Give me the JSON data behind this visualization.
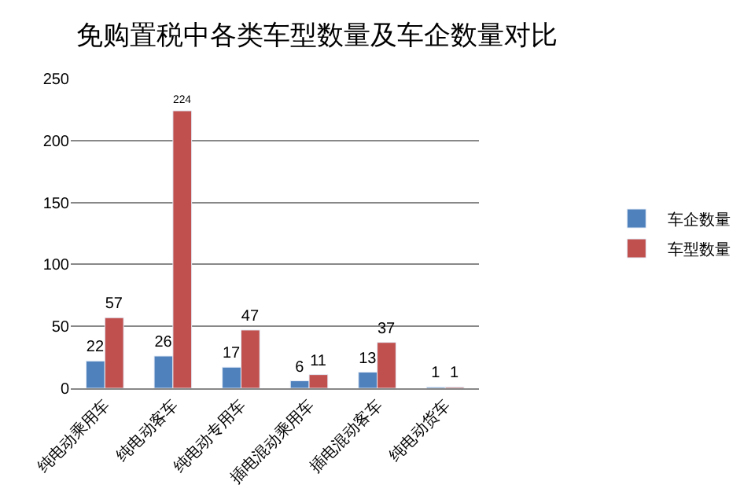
{
  "chart_data": {
    "type": "bar",
    "title": "免购置税中各类车型数量及车企数量对比",
    "categories": [
      "纯电动乘用车",
      "纯电动客车",
      "纯电动专用车",
      "插电混动乘用车",
      "插电混动客车",
      "纯电动货车"
    ],
    "series": [
      {
        "name": "车企数量",
        "color": "#4f81bd",
        "values": [
          22,
          26,
          17,
          6,
          13,
          1
        ]
      },
      {
        "name": "车型数量",
        "color": "#c0504d",
        "values": [
          57,
          224,
          47,
          11,
          37,
          1
        ]
      }
    ],
    "ylim": [
      0,
      250
    ],
    "yticks": [
      0,
      50,
      100,
      150,
      200,
      250
    ],
    "grid": "y",
    "legend": "right",
    "data_labels": true
  }
}
